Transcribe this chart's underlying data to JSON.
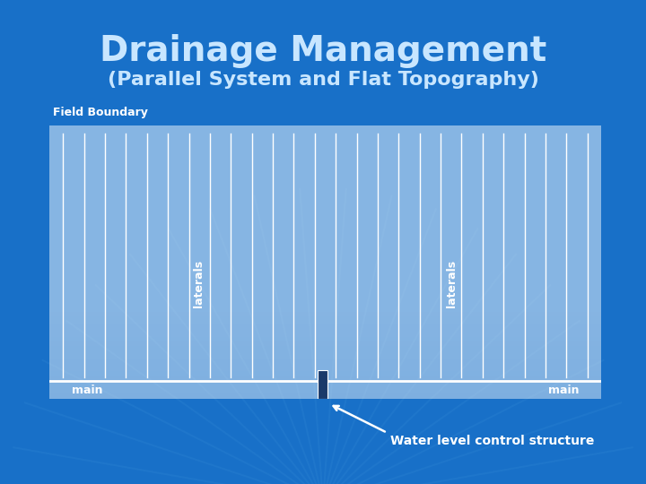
{
  "title": "Drainage Management",
  "subtitle": "(Parallel System and Flat Topography)",
  "title_color": "#C8E6FF",
  "subtitle_color": "#C8E6FF",
  "bg_color": "#1870C8",
  "field_box_color_top": "#9BAAB8",
  "field_box_color_bot": "#8090A0",
  "field_box_edge": "#FFFFFF",
  "field_label": "Field Boundary",
  "main_label_left": "main",
  "main_label_right": "main",
  "laterals_label_left": "laterals",
  "laterals_label_right": "laterals",
  "water_level_label": "Water level control structure",
  "num_laterals": 26,
  "lateral_color": "#FFFFFF",
  "main_line_color": "#FFFFFF",
  "structure_color": "#1A3A6A",
  "arrow_color": "#FFFFFF",
  "fig_width": 7.2,
  "fig_height": 5.4,
  "dpi": 100
}
